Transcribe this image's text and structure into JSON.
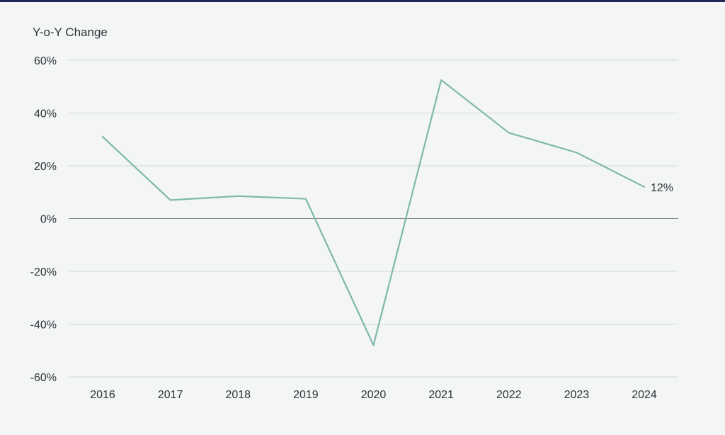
{
  "chart_data": {
    "type": "line",
    "ylabel": "Y-o-Y Change",
    "x": [
      "2016",
      "2017",
      "2018",
      "2019",
      "2020",
      "2021",
      "2022",
      "2023",
      "2024"
    ],
    "series": [
      {
        "values": [
          31,
          7,
          8.5,
          7.5,
          -48,
          52.5,
          32.5,
          25,
          12
        ]
      }
    ],
    "ylim": [
      -60,
      60
    ],
    "yticks": [
      60,
      40,
      20,
      0,
      -20,
      -40,
      -60
    ],
    "ytick_labels": [
      "60%",
      "40%",
      "20%",
      "0%",
      "-20%",
      "-40%",
      "-60%"
    ],
    "end_label": "12%",
    "grid": true,
    "colors": {
      "line": "#7fb8ab",
      "grid": "#d3d9d8",
      "zero": "#7a7f83",
      "background": "#f3f6f5",
      "top_rule": "#1f2a5a"
    }
  }
}
